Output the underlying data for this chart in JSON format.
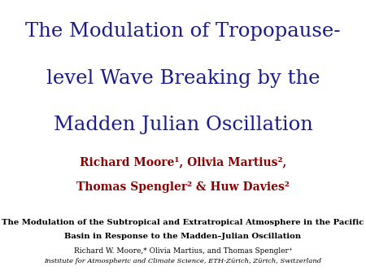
{
  "background_color": "#ffffff",
  "title_line1": "The Modulation of Tropopause-",
  "title_line2": "level Wave Breaking by the",
  "title_line3": "Madden Julian Oscillation",
  "title_color": "#1a1a8c",
  "title_fontsize": 17.5,
  "authors_line1": "Richard Moore¹, Olivia Martius²,",
  "authors_line2": "Thomas Spengler² & Huw Davies²",
  "authors_color": "#8b0000",
  "authors_fontsize": 10,
  "paper_title_line1": "The Modulation of the Subtropical and Extratropical Atmosphere in the Pacific",
  "paper_title_line2": "Basin in Response to the Madden–Julian Oscillation",
  "paper_title_color": "#000000",
  "paper_title_fontsize": 7.2,
  "paper_authors": "Richard W. Moore,* Olivia Martius, and Thomas Spengler⁺",
  "paper_authors_color": "#000000",
  "paper_authors_fontsize": 6.5,
  "paper_institute": "Institute for Atmospheric and Climate Science, ETH-Zürich, Zürich, Switzerland",
  "paper_institute_color": "#000000",
  "paper_institute_fontsize": 6.0
}
